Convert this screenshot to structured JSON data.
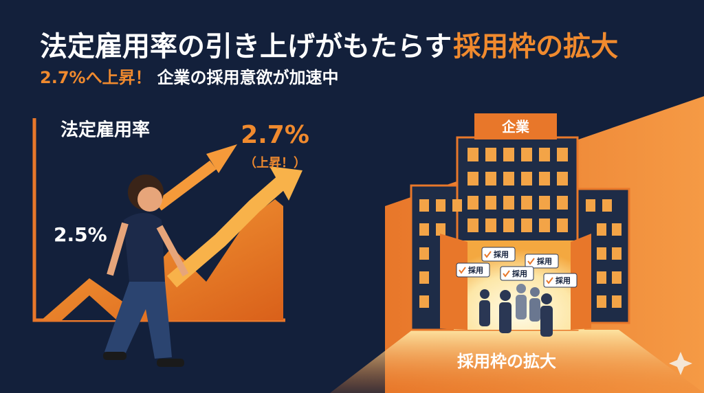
{
  "title": {
    "main": "法定雇用率の引き上げがもたらす",
    "highlight": "採用枠の拡大"
  },
  "subtitle": {
    "highlight": "2.7%へ上昇！",
    "main": "企業の採用意欲が加速中"
  },
  "graph": {
    "label": "法定雇用率",
    "start_rate": "2.5%",
    "end_rate": "2.7%",
    "end_note": "（上昇！）"
  },
  "building": {
    "sign": "企業",
    "bubbles": [
      "採用",
      "採用",
      "採用",
      "採用",
      "採用"
    ]
  },
  "footer": {
    "caption": "採用枠の拡大"
  }
}
